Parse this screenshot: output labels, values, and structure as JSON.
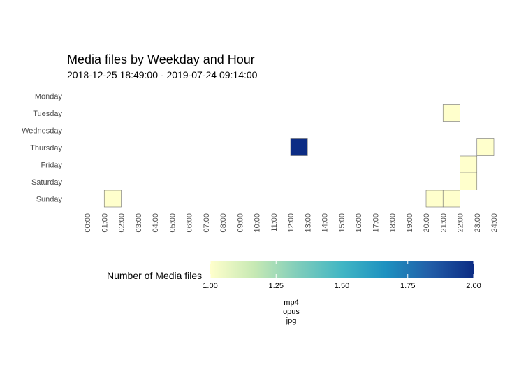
{
  "chart_data": {
    "type": "heatmap",
    "title": "Media files by Weekday and Hour",
    "subtitle": "2018-12-25 18:49:00  -  2019-07-24 09:14:00",
    "y_categories": [
      "Monday",
      "Tuesday",
      "Wednesday",
      "Thursday",
      "Friday",
      "Saturday",
      "Sunday"
    ],
    "x_tick_labels": [
      "00:00",
      "01:00",
      "02:00",
      "03:00",
      "04:00",
      "05:00",
      "06:00",
      "07:00",
      "08:00",
      "09:00",
      "10:00",
      "11:00",
      "12:00",
      "13:00",
      "14:00",
      "15:00",
      "16:00",
      "17:00",
      "18:00",
      "19:00",
      "20:00",
      "21:00",
      "22:00",
      "23:00",
      "24:00"
    ],
    "cells": [
      {
        "day": "Tuesday",
        "hour": 21,
        "value": 1
      },
      {
        "day": "Thursday",
        "hour": 12,
        "value": 2
      },
      {
        "day": "Thursday",
        "hour": 23,
        "value": 1
      },
      {
        "day": "Friday",
        "hour": 22,
        "value": 1
      },
      {
        "day": "Saturday",
        "hour": 22,
        "value": 1
      },
      {
        "day": "Sunday",
        "hour": 1,
        "value": 1
      },
      {
        "day": "Sunday",
        "hour": 20,
        "value": 1
      },
      {
        "day": "Sunday",
        "hour": 21,
        "value": 1
      }
    ],
    "legend": {
      "title": "Number of Media files",
      "ticks": [
        "1.00",
        "1.25",
        "1.50",
        "1.75",
        "2.00"
      ],
      "range": [
        1,
        2
      ],
      "colors": [
        "#ffffcc",
        "#c7e9b4",
        "#7fcdbb",
        "#41b6c4",
        "#1d91c0",
        "#225ea8",
        "#0c2c84"
      ]
    },
    "note_lines": [
      "mp4",
      "opus",
      "jpg"
    ],
    "grid": false
  }
}
